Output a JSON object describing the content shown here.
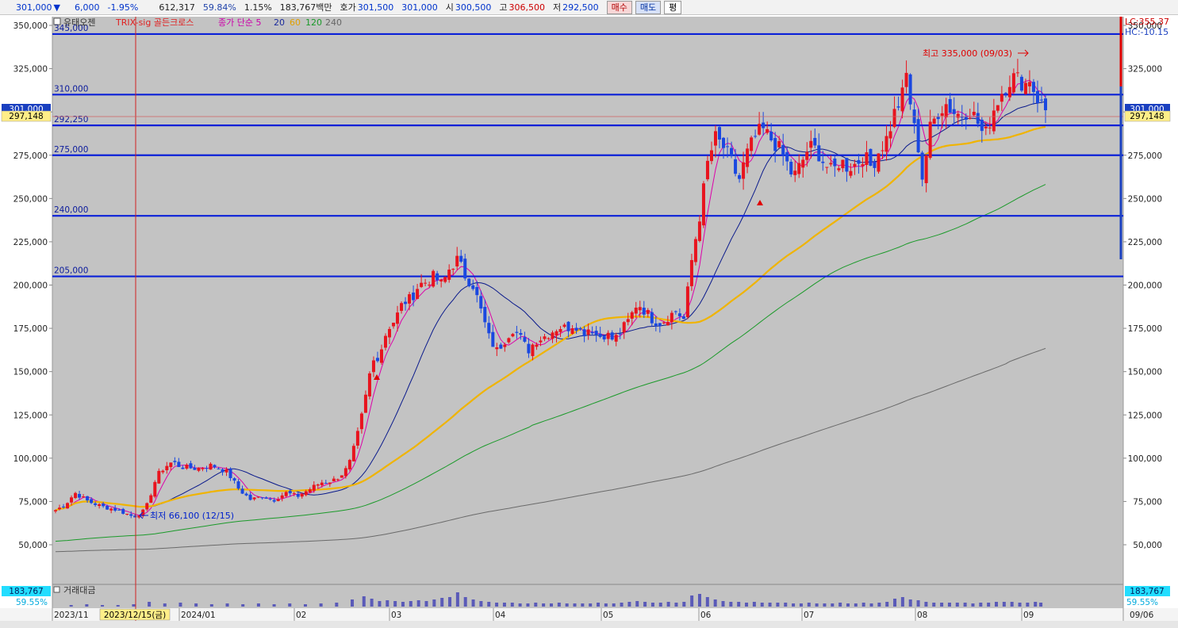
{
  "toolbar": {
    "price": "301,000",
    "change": "6,000",
    "change_pct": "-1.95%",
    "volume": "612,317",
    "volume_ratio": "59.84%",
    "turnover_pct": "1.15%",
    "trade_value": "183,767백만",
    "bid_label": "호가",
    "bid": "301,500",
    "ask": "301,000",
    "open_label": "시",
    "open": "300,500",
    "high_label": "고",
    "high": "306,500",
    "low_label": "저",
    "low": "292,500",
    "buy_button": "매수",
    "sell_button": "매도",
    "flat_button": "평"
  },
  "legend": {
    "icon_text": "유태오젠",
    "trix": "TRIX-sig 골든크로스",
    "ma_title": "종가 단순 5",
    "ma20": "20",
    "ma60": "60",
    "ma120": "120",
    "ma240": "240",
    "colors": {
      "ma5": "#dd00aa",
      "ma20": "#0a1a8c",
      "ma60": "#f0b400",
      "ma120": "#1b9a2a",
      "ma240": "#6a6a6a",
      "trix": "#ff2222"
    }
  },
  "right_panel": {
    "lc": "LC:355.37",
    "hc": "HC:-10.15",
    "current_price_badge": "301,000",
    "cursor_price_badge": "297,148"
  },
  "left_panel": {
    "current_price_badge": "301,000",
    "cursor_price_badge": "297,148"
  },
  "volume_panel": {
    "title": "거래대금",
    "left_value": "183,767",
    "left_pct": "59.55%",
    "right_value": "183,767",
    "right_pct": "59.55%"
  },
  "annotations": {
    "high": "최고 335,000 (09/03)",
    "low": "최저 66,100 (12/15)"
  },
  "date_axis": {
    "cursor_date": "2023/12/15(금)",
    "right_date": "09/06"
  },
  "chart_data": {
    "type": "candlestick",
    "ylim": [
      40000,
      355000
    ],
    "y_ticks": [
      "350,000",
      "325,000",
      "300,000",
      "275,000",
      "250,000",
      "225,000",
      "200,000",
      "175,000",
      "150,000",
      "125,000",
      "100,000",
      "75,000",
      "50,000"
    ],
    "y_tick_values": [
      350000,
      325000,
      300000,
      275000,
      250000,
      225000,
      200000,
      175000,
      150000,
      125000,
      100000,
      75000,
      50000
    ],
    "x_month_labels": [
      "2023/11",
      "2023/12",
      "2024/01",
      "02",
      "03",
      "04",
      "05",
      "06",
      "07",
      "08",
      "09"
    ],
    "support_lines": [
      {
        "value": 345000,
        "label": "345,000"
      },
      {
        "value": 310000,
        "label": "310,000"
      },
      {
        "value": 292250,
        "label": "292,250"
      },
      {
        "value": 275000,
        "label": "275,000"
      },
      {
        "value": 240000,
        "label": "240,000"
      },
      {
        "value": 205000,
        "label": "205,000"
      }
    ],
    "key_points": {
      "max": {
        "value": 335000,
        "date": "09/03"
      },
      "min": {
        "value": 66100,
        "date": "12/15"
      },
      "last": 301000
    },
    "price_path": [
      [
        0,
        70000
      ],
      [
        12,
        73000
      ],
      [
        25,
        80000
      ],
      [
        42,
        75000
      ],
      [
        60,
        72000
      ],
      [
        80,
        70000
      ],
      [
        100,
        66100
      ],
      [
        115,
        70000
      ],
      [
        130,
        90000
      ],
      [
        140,
        95000
      ],
      [
        150,
        98000
      ],
      [
        160,
        95000
      ],
      [
        180,
        94000
      ],
      [
        200,
        96000
      ],
      [
        220,
        92000
      ],
      [
        235,
        82000
      ],
      [
        250,
        76000
      ],
      [
        265,
        78000
      ],
      [
        280,
        76000
      ],
      [
        295,
        80000
      ],
      [
        310,
        78000
      ],
      [
        325,
        82000
      ],
      [
        340,
        86000
      ],
      [
        355,
        87000
      ],
      [
        365,
        90000
      ],
      [
        375,
        95000
      ],
      [
        385,
        110000
      ],
      [
        395,
        130000
      ],
      [
        405,
        155000
      ],
      [
        415,
        160000
      ],
      [
        425,
        175000
      ],
      [
        435,
        180000
      ],
      [
        445,
        190000
      ],
      [
        455,
        192000
      ],
      [
        465,
        200000
      ],
      [
        475,
        202000
      ],
      [
        485,
        205000
      ],
      [
        495,
        200000
      ],
      [
        505,
        210000
      ],
      [
        515,
        215000
      ],
      [
        525,
        205000
      ],
      [
        535,
        200000
      ],
      [
        545,
        185000
      ],
      [
        555,
        170000
      ],
      [
        565,
        162000
      ],
      [
        575,
        168000
      ],
      [
        585,
        175000
      ],
      [
        595,
        170000
      ],
      [
        605,
        162000
      ],
      [
        615,
        168000
      ],
      [
        625,
        170000
      ],
      [
        635,
        173000
      ],
      [
        645,
        176000
      ],
      [
        655,
        175000
      ],
      [
        665,
        178000
      ],
      [
        675,
        172000
      ],
      [
        685,
        176000
      ],
      [
        695,
        170000
      ],
      [
        705,
        172000
      ],
      [
        715,
        168000
      ],
      [
        725,
        174000
      ],
      [
        735,
        180000
      ],
      [
        745,
        190000
      ],
      [
        755,
        185000
      ],
      [
        765,
        180000
      ],
      [
        775,
        178000
      ],
      [
        785,
        182000
      ],
      [
        795,
        185000
      ],
      [
        805,
        180000
      ],
      [
        815,
        215000
      ],
      [
        825,
        240000
      ],
      [
        835,
        270000
      ],
      [
        845,
        285000
      ],
      [
        855,
        280000
      ],
      [
        865,
        272000
      ],
      [
        875,
        260000
      ],
      [
        885,
        275000
      ],
      [
        895,
        285000
      ],
      [
        905,
        290000
      ],
      [
        915,
        285000
      ],
      [
        925,
        280000
      ],
      [
        935,
        272000
      ],
      [
        945,
        262000
      ],
      [
        955,
        270000
      ],
      [
        965,
        280000
      ],
      [
        975,
        278000
      ],
      [
        985,
        270000
      ],
      [
        995,
        265000
      ],
      [
        1005,
        272000
      ],
      [
        1015,
        268000
      ],
      [
        1025,
        270000
      ],
      [
        1035,
        275000
      ],
      [
        1045,
        268000
      ],
      [
        1055,
        278000
      ],
      [
        1065,
        285000
      ],
      [
        1075,
        300000
      ],
      [
        1085,
        310000
      ],
      [
        1090,
        322000
      ],
      [
        1095,
        305000
      ],
      [
        1100,
        290000
      ],
      [
        1105,
        280000
      ],
      [
        1110,
        262000
      ],
      [
        1115,
        275000
      ],
      [
        1120,
        290000
      ],
      [
        1130,
        300000
      ],
      [
        1140,
        305000
      ],
      [
        1150,
        300000
      ],
      [
        1160,
        298000
      ],
      [
        1170,
        302000
      ],
      [
        1180,
        295000
      ],
      [
        1190,
        285000
      ],
      [
        1200,
        300000
      ],
      [
        1210,
        310000
      ],
      [
        1220,
        318000
      ],
      [
        1228,
        320000
      ],
      [
        1236,
        318000
      ],
      [
        1242,
        316000
      ],
      [
        1248,
        320000
      ],
      [
        1255,
        310000
      ],
      [
        1262,
        305000
      ],
      [
        1268,
        301000
      ]
    ],
    "volume_bars": [
      [
        20,
        2
      ],
      [
        40,
        3
      ],
      [
        60,
        2
      ],
      [
        80,
        2
      ],
      [
        100,
        3
      ],
      [
        120,
        6
      ],
      [
        140,
        4
      ],
      [
        160,
        5
      ],
      [
        180,
        4
      ],
      [
        200,
        3
      ],
      [
        220,
        4
      ],
      [
        240,
        3
      ],
      [
        260,
        4
      ],
      [
        280,
        3
      ],
      [
        300,
        4
      ],
      [
        320,
        3
      ],
      [
        340,
        4
      ],
      [
        360,
        5
      ],
      [
        380,
        9
      ],
      [
        395,
        13
      ],
      [
        405,
        10
      ],
      [
        415,
        7
      ],
      [
        425,
        8
      ],
      [
        435,
        7
      ],
      [
        445,
        6
      ],
      [
        455,
        7
      ],
      [
        465,
        8
      ],
      [
        475,
        7
      ],
      [
        485,
        9
      ],
      [
        495,
        11
      ],
      [
        505,
        12
      ],
      [
        515,
        18
      ],
      [
        525,
        12
      ],
      [
        535,
        9
      ],
      [
        545,
        7
      ],
      [
        555,
        6
      ],
      [
        565,
        5
      ],
      [
        575,
        5
      ],
      [
        585,
        5
      ],
      [
        595,
        4
      ],
      [
        605,
        4
      ],
      [
        615,
        5
      ],
      [
        625,
        4
      ],
      [
        635,
        4
      ],
      [
        645,
        5
      ],
      [
        655,
        4
      ],
      [
        665,
        4
      ],
      [
        675,
        4
      ],
      [
        685,
        4
      ],
      [
        695,
        5
      ],
      [
        705,
        4
      ],
      [
        715,
        4
      ],
      [
        725,
        5
      ],
      [
        735,
        6
      ],
      [
        745,
        7
      ],
      [
        755,
        6
      ],
      [
        765,
        5
      ],
      [
        775,
        5
      ],
      [
        785,
        6
      ],
      [
        795,
        5
      ],
      [
        805,
        6
      ],
      [
        815,
        14
      ],
      [
        825,
        16
      ],
      [
        835,
        12
      ],
      [
        845,
        9
      ],
      [
        855,
        7
      ],
      [
        865,
        6
      ],
      [
        875,
        6
      ],
      [
        885,
        5
      ],
      [
        895,
        6
      ],
      [
        905,
        5
      ],
      [
        915,
        5
      ],
      [
        925,
        5
      ],
      [
        935,
        5
      ],
      [
        945,
        4
      ],
      [
        955,
        4
      ],
      [
        965,
        5
      ],
      [
        975,
        4
      ],
      [
        985,
        4
      ],
      [
        995,
        4
      ],
      [
        1005,
        5
      ],
      [
        1015,
        4
      ],
      [
        1025,
        4
      ],
      [
        1035,
        5
      ],
      [
        1045,
        4
      ],
      [
        1055,
        5
      ],
      [
        1065,
        6
      ],
      [
        1075,
        10
      ],
      [
        1085,
        12
      ],
      [
        1095,
        9
      ],
      [
        1105,
        8
      ],
      [
        1115,
        6
      ],
      [
        1125,
        5
      ],
      [
        1135,
        5
      ],
      [
        1145,
        5
      ],
      [
        1155,
        5
      ],
      [
        1165,
        5
      ],
      [
        1175,
        4
      ],
      [
        1185,
        5
      ],
      [
        1195,
        5
      ],
      [
        1205,
        6
      ],
      [
        1215,
        6
      ],
      [
        1225,
        6
      ],
      [
        1235,
        5
      ],
      [
        1245,
        5
      ],
      [
        1255,
        6
      ],
      [
        1262,
        5
      ]
    ]
  }
}
